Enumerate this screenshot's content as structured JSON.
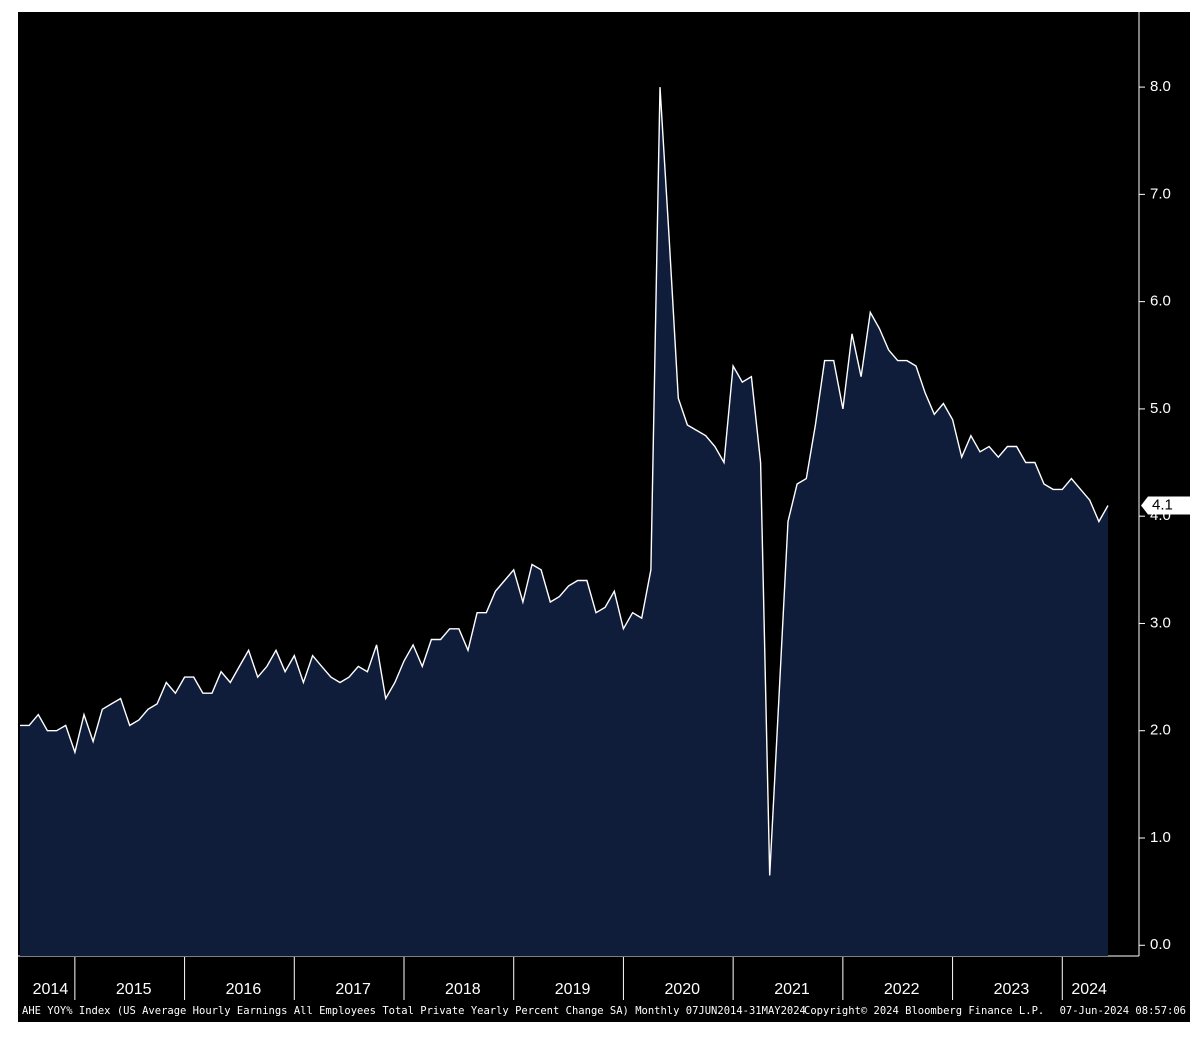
{
  "chart_data": {
    "type": "area",
    "x": [
      "2014-06",
      "2014-07",
      "2014-08",
      "2014-09",
      "2014-10",
      "2014-11",
      "2014-12",
      "2015-01",
      "2015-02",
      "2015-03",
      "2015-04",
      "2015-05",
      "2015-06",
      "2015-07",
      "2015-08",
      "2015-09",
      "2015-10",
      "2015-11",
      "2015-12",
      "2016-01",
      "2016-02",
      "2016-03",
      "2016-04",
      "2016-05",
      "2016-06",
      "2016-07",
      "2016-08",
      "2016-09",
      "2016-10",
      "2016-11",
      "2016-12",
      "2017-01",
      "2017-02",
      "2017-03",
      "2017-04",
      "2017-05",
      "2017-06",
      "2017-07",
      "2017-08",
      "2017-09",
      "2017-10",
      "2017-11",
      "2017-12",
      "2018-01",
      "2018-02",
      "2018-03",
      "2018-04",
      "2018-05",
      "2018-06",
      "2018-07",
      "2018-08",
      "2018-09",
      "2018-10",
      "2018-11",
      "2018-12",
      "2019-01",
      "2019-02",
      "2019-03",
      "2019-04",
      "2019-05",
      "2019-06",
      "2019-07",
      "2019-08",
      "2019-09",
      "2019-10",
      "2019-11",
      "2019-12",
      "2020-01",
      "2020-02",
      "2020-03",
      "2020-04",
      "2020-05",
      "2020-06",
      "2020-07",
      "2020-08",
      "2020-09",
      "2020-10",
      "2020-11",
      "2020-12",
      "2021-01",
      "2021-02",
      "2021-03",
      "2021-04",
      "2021-05",
      "2021-06",
      "2021-07",
      "2021-08",
      "2021-09",
      "2021-10",
      "2021-11",
      "2021-12",
      "2022-01",
      "2022-02",
      "2022-03",
      "2022-04",
      "2022-05",
      "2022-06",
      "2022-07",
      "2022-08",
      "2022-09",
      "2022-10",
      "2022-11",
      "2022-12",
      "2023-01",
      "2023-02",
      "2023-03",
      "2023-04",
      "2023-05",
      "2023-06",
      "2023-07",
      "2023-08",
      "2023-09",
      "2023-10",
      "2023-11",
      "2023-12",
      "2024-01",
      "2024-02",
      "2024-03",
      "2024-04",
      "2024-05"
    ],
    "values": [
      2.05,
      2.05,
      2.15,
      2.0,
      2.0,
      2.05,
      1.8,
      2.15,
      1.9,
      2.2,
      2.25,
      2.3,
      2.05,
      2.1,
      2.2,
      2.25,
      2.45,
      2.35,
      2.5,
      2.5,
      2.35,
      2.35,
      2.55,
      2.45,
      2.6,
      2.75,
      2.5,
      2.6,
      2.75,
      2.55,
      2.7,
      2.45,
      2.7,
      2.6,
      2.5,
      2.45,
      2.5,
      2.6,
      2.55,
      2.8,
      2.3,
      2.45,
      2.65,
      2.8,
      2.6,
      2.85,
      2.85,
      2.95,
      2.95,
      2.75,
      3.1,
      3.1,
      3.3,
      3.4,
      3.5,
      3.2,
      3.55,
      3.5,
      3.2,
      3.25,
      3.35,
      3.4,
      3.4,
      3.1,
      3.15,
      3.3,
      2.95,
      3.1,
      3.05,
      3.5,
      8.0,
      6.6,
      5.1,
      4.85,
      4.8,
      4.75,
      4.65,
      4.5,
      5.4,
      5.25,
      5.3,
      4.5,
      0.65,
      2.3,
      3.95,
      4.3,
      4.35,
      4.85,
      5.45,
      5.45,
      5.0,
      5.7,
      5.3,
      5.9,
      5.75,
      5.55,
      5.45,
      5.45,
      5.4,
      5.15,
      4.95,
      5.05,
      4.9,
      4.55,
      4.75,
      4.6,
      4.65,
      4.55,
      4.65,
      4.65,
      4.5,
      4.5,
      4.3,
      4.25,
      4.25,
      4.35,
      4.25,
      4.15,
      3.95,
      4.1
    ],
    "last_label": "4.1",
    "color": "#0f1d3b",
    "line_color": "#ffffff",
    "ylim": [
      -0.1,
      8.7
    ],
    "yticks": [
      {
        "value": 0,
        "label": "0.0"
      },
      {
        "value": 1,
        "label": "1.0"
      },
      {
        "value": 2,
        "label": "2.0"
      },
      {
        "value": 3,
        "label": "3.0"
      },
      {
        "value": 4,
        "label": "4.0"
      },
      {
        "value": 5,
        "label": "5.0"
      },
      {
        "value": 6,
        "label": "6.0"
      },
      {
        "value": 7,
        "label": "7.0"
      },
      {
        "value": 8,
        "label": "8.0"
      }
    ],
    "xticks": [
      2014,
      2015,
      2016,
      2017,
      2018,
      2019,
      2020,
      2021,
      2022,
      2023,
      2024
    ],
    "footer": [
      "AHE YOY% Index (US Average Hourly Earnings All Employees Total Private Yearly Percent Change SA)  Monthly 07JUN2014-31MAY2024",
      "Copyright© 2024 Bloomberg Finance L.P.",
      "07-Jun-2024 08:57:06"
    ]
  }
}
